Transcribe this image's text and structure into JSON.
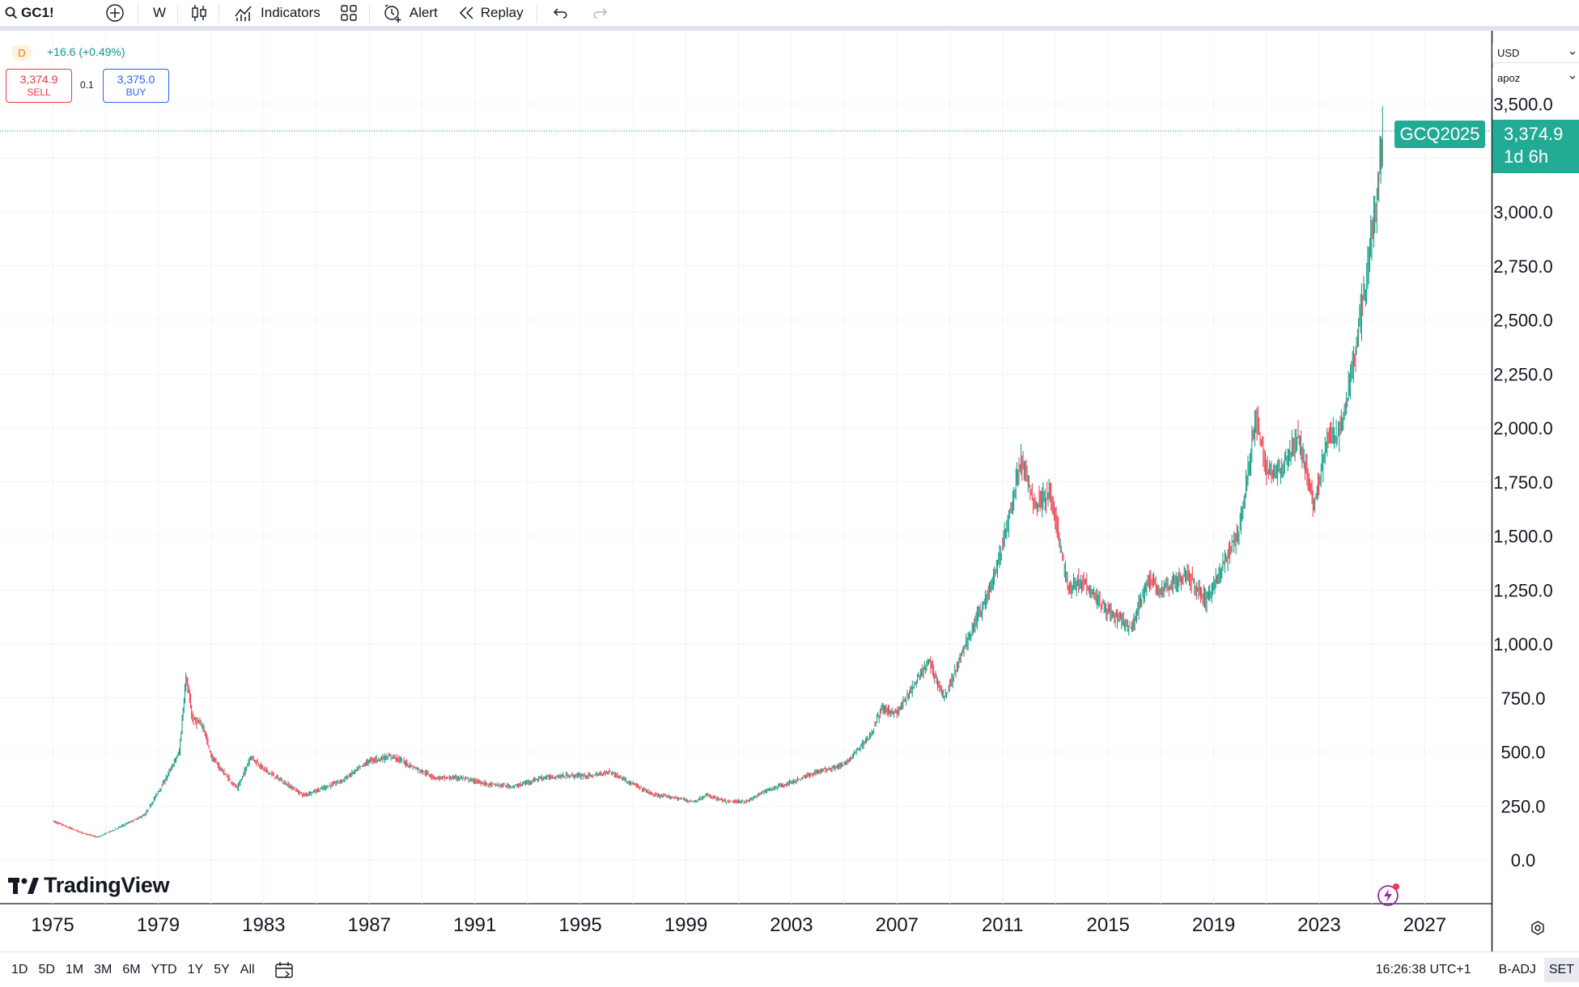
{
  "toolbar": {
    "symbol": "GC1!",
    "interval": "W",
    "indicators_label": "Indicators",
    "alert_label": "Alert",
    "replay_label": "Replay"
  },
  "legend": {
    "interval_badge": "D",
    "change": "+16.6 (+0.49%)",
    "sell_price": "3,374.9",
    "sell_label": "SELL",
    "spread": "0.1",
    "buy_price": "3,375.0",
    "buy_label": "BUY"
  },
  "price_panel": {
    "currency": "USD",
    "unit": "apoz",
    "symbol_tag": "GCQ2025",
    "last_price": "3,374.9",
    "countdown": "1d 6h"
  },
  "watermark": "TradingView",
  "bottom_bar": {
    "ranges": [
      "1D",
      "5D",
      "1M",
      "3M",
      "6M",
      "YTD",
      "1Y",
      "5Y",
      "All"
    ],
    "clock": "16:26:38 UTC+1",
    "adjustment": "B-ADJ",
    "settlement": "SET"
  },
  "colors": {
    "up": "#089981",
    "down": "#f23645",
    "accent_tag": "#22ab94",
    "grid": "#f0f3fa"
  },
  "chart_data": {
    "type": "line",
    "title": "",
    "xlabel": "",
    "ylabel": "",
    "x_ticks": [
      "1975",
      "1979",
      "1983",
      "1987",
      "1991",
      "1995",
      "1999",
      "2003",
      "2007",
      "2011",
      "2015",
      "2019",
      "2023",
      "2027"
    ],
    "y_ticks": [
      "0.0",
      "250.0",
      "500.0",
      "750.0",
      "1,000.0",
      "1,250.0",
      "1,500.0",
      "1,750.0",
      "2,000.0",
      "2,250.0",
      "2,500.0",
      "2,750.0",
      "3,000.0",
      "3,500.0"
    ],
    "xlim": [
      1974.2,
      2029.0
    ],
    "ylim": [
      -100,
      3700
    ],
    "grid": true,
    "last_value": 3374.9,
    "series": [
      {
        "x": [
          1975.0,
          1976.0,
          1976.7,
          1977.5,
          1978.5,
          1979.3,
          1979.8,
          1980.05,
          1980.3,
          1980.7,
          1981.0,
          1981.5,
          1982.0,
          1982.5,
          1983.0,
          1983.5,
          1984.5,
          1985.2,
          1986.0,
          1987.0,
          1987.9,
          1988.5,
          1989.5,
          1990.5,
          1991.5,
          1992.5,
          1993.5,
          1994.5,
          1995.5,
          1996.1,
          1997.0,
          1997.8,
          1998.5,
          1999.3,
          1999.8,
          2000.5,
          2001.3,
          2002.0,
          2003.0,
          2004.0,
          2005.0,
          2006.0,
          2006.4,
          2007.0,
          2008.2,
          2008.8,
          2009.5,
          2010.5,
          2011.0,
          2011.7,
          2012.2,
          2012.8,
          2013.5,
          2014.0,
          2015.0,
          2015.9,
          2016.5,
          2017.0,
          2018.0,
          2018.7,
          2019.5,
          2020.0,
          2020.6,
          2021.0,
          2021.5,
          2022.2,
          2022.8,
          2023.3,
          2023.8,
          2024.3,
          2024.8,
          2025.3,
          2025.4
        ],
        "y": [
          180,
          130,
          105,
          150,
          210,
          380,
          500,
          850,
          650,
          620,
          480,
          400,
          330,
          480,
          420,
          380,
          300,
          330,
          370,
          460,
          480,
          440,
          380,
          380,
          350,
          340,
          380,
          390,
          390,
          410,
          350,
          300,
          290,
          270,
          300,
          270,
          270,
          320,
          360,
          410,
          440,
          580,
          700,
          680,
          920,
          750,
          970,
          1250,
          1450,
          1850,
          1650,
          1700,
          1250,
          1300,
          1150,
          1070,
          1300,
          1250,
          1320,
          1200,
          1400,
          1550,
          2050,
          1800,
          1800,
          1950,
          1650,
          1950,
          1980,
          2300,
          2700,
          3200,
          3374.9
        ]
      }
    ]
  }
}
